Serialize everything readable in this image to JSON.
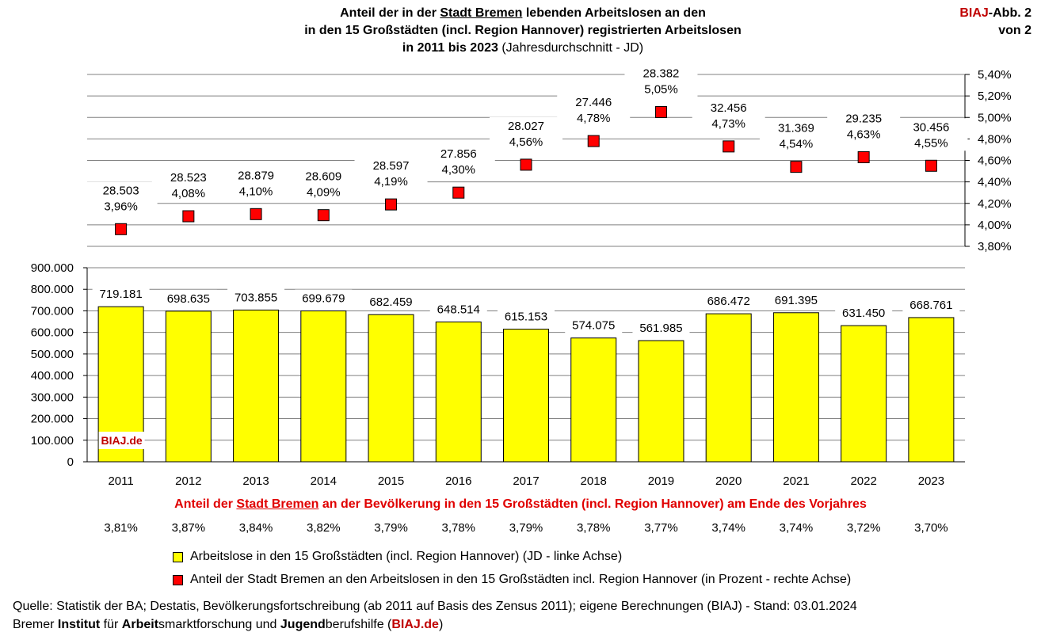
{
  "title": {
    "line1_a": "Anteil der in der ",
    "line1_u": "Stadt Bremen",
    "line1_b": " lebenden Arbeitslosen an den",
    "line2": "in den 15 Großstädten (incl. Region Hannover) registrierten Arbeitslosen",
    "line3_bold": "in 2011 bis 2023",
    "line3_normal": " (Jahresdurchschnitt - JD)"
  },
  "badge": {
    "red": "BIAJ",
    "rest": "-Abb. 2",
    "line2": "von 2"
  },
  "watermark": "BIAJ.de",
  "chart_data": {
    "type": "bar",
    "categories": [
      "2011",
      "2012",
      "2013",
      "2014",
      "2015",
      "2016",
      "2017",
      "2018",
      "2019",
      "2020",
      "2021",
      "2022",
      "2023"
    ],
    "series": [
      {
        "name": "Arbeitslose in den 15 Großstädten (incl. Region Hannover) (JD - linke Achse)",
        "type": "bar",
        "axis": "left",
        "color": "#ffff00",
        "values": [
          719181,
          698635,
          703855,
          699679,
          682459,
          648514,
          615153,
          574075,
          561985,
          686472,
          691395,
          631450,
          668761
        ],
        "labels": [
          "719.181",
          "698.635",
          "703.855",
          "699.679",
          "682.459",
          "648.514",
          "615.153",
          "574.075",
          "561.985",
          "686.472",
          "691.395",
          "631.450",
          "668.761"
        ]
      },
      {
        "name": "Anteil der Stadt Bremen an den Arbeitslosen in den 15 Großstädten incl. Region Hannover (in Prozent - rechte Achse)",
        "type": "scatter",
        "axis": "right",
        "color": "#ff0000",
        "values": [
          3.96,
          4.08,
          4.1,
          4.09,
          4.19,
          4.3,
          4.56,
          4.78,
          5.05,
          4.73,
          4.54,
          4.63,
          4.55
        ],
        "labels": [
          "3,96%",
          "4,08%",
          "4,10%",
          "4,09%",
          "4,19%",
          "4,30%",
          "4,56%",
          "4,78%",
          "5,05%",
          "4,73%",
          "4,54%",
          "4,63%",
          "4,55%"
        ],
        "counts": [
          "28.503",
          "28.523",
          "28.879",
          "28.609",
          "28.597",
          "27.856",
          "28.027",
          "27.446",
          "28.382",
          "32.456",
          "31.369",
          "29.235",
          "30.456"
        ]
      }
    ],
    "left_axis": {
      "min": 0,
      "max": 900000,
      "ticks": [
        "0",
        "100.000",
        "200.000",
        "300.000",
        "400.000",
        "500.000",
        "600.000",
        "700.000",
        "800.000",
        "900.000"
      ]
    },
    "right_axis": {
      "min": 3.8,
      "max": 5.4,
      "ticks": [
        "3,80%",
        "4,00%",
        "4,20%",
        "4,40%",
        "4,60%",
        "4,80%",
        "5,00%",
        "5,20%",
        "5,40%"
      ]
    },
    "population_share_title_a": "Anteil der ",
    "population_share_title_u": "Stadt Bremen",
    "population_share_title_b": " an der Bevölkerung in den 15 Großstädten (incl. Region Hannover) am Ende des Vorjahres",
    "population_share": [
      "3,81%",
      "3,87%",
      "3,84%",
      "3,82%",
      "3,79%",
      "3,78%",
      "3,79%",
      "3,78%",
      "3,77%",
      "3,74%",
      "3,74%",
      "3,72%",
      "3,70%"
    ]
  },
  "legend": [
    {
      "label": "Arbeitslose in den 15 Großstädten (incl. Region Hannover) (JD - linke Achse)",
      "color": "#ffff00"
    },
    {
      "label": "Anteil der Stadt Bremen an den Arbeitslosen in den 15 Großstädten incl. Region Hannover (in Prozent - rechte Achse)",
      "color": "#ff0000"
    }
  ],
  "footer": {
    "source": "Quelle: Statistik der BA; Destatis, Bevölkerungsfortschreibung (ab 2011 auf Basis des Zensus 2011); eigene Berechnungen (BIAJ) - Stand: 03.01.2024",
    "inst_1": "Bremer ",
    "inst_2": "Institut",
    "inst_3": " für ",
    "inst_4": "Arbeit",
    "inst_5": "smarktforschung und ",
    "inst_6": "Jugend",
    "inst_7": "berufshilfe (",
    "inst_8": "BIAJ.de",
    "inst_9": ")"
  }
}
